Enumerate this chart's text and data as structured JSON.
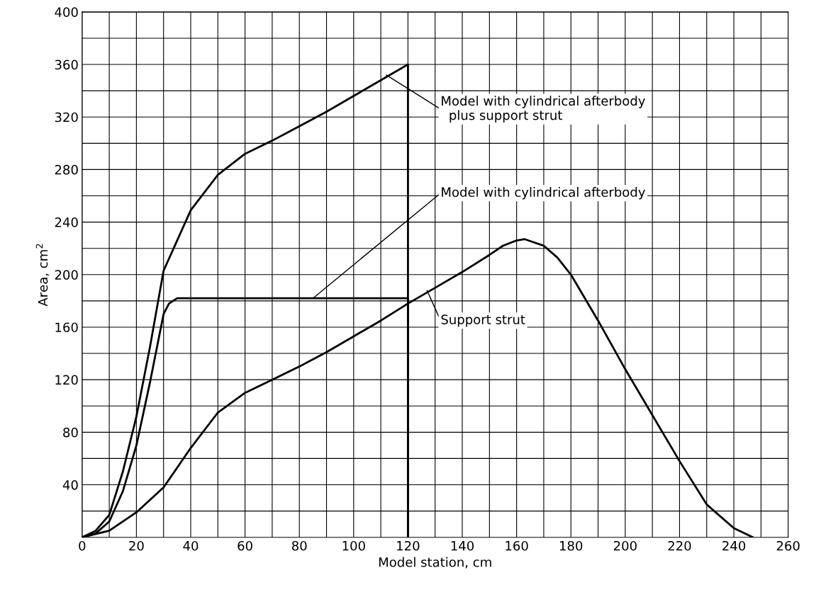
{
  "chart_data": {
    "type": "line",
    "xlabel": "Model station, cm",
    "ylabel": "Area, cm$^{2}$",
    "xlim": [
      0,
      260
    ],
    "ylim": [
      0,
      400
    ],
    "xticks": [
      0,
      {
        "value": 10,
        "label": null
      },
      20,
      {
        "value": 30,
        "label": null
      },
      40,
      {
        "value": 50,
        "label": null
      },
      60,
      {
        "value": 70,
        "label": null
      },
      80,
      {
        "value": 90,
        "label": null
      },
      100,
      {
        "value": 110,
        "label": null
      },
      120,
      {
        "value": 130,
        "label": null
      },
      140,
      {
        "value": 150,
        "label": null
      },
      160,
      {
        "value": 170,
        "label": null
      },
      180,
      {
        "value": 190,
        "label": null
      },
      200,
      {
        "value": 210,
        "label": null
      },
      220,
      {
        "value": 230,
        "label": null
      },
      240,
      {
        "value": 250,
        "label": null
      },
      260
    ],
    "yticks": [
      {
        "value": 20,
        "label": null
      },
      40,
      {
        "value": 60,
        "label": null
      },
      80,
      {
        "value": 100,
        "label": null
      },
      120,
      {
        "value": 140,
        "label": null
      },
      160,
      {
        "value": 180,
        "label": null
      },
      200,
      {
        "value": 220,
        "label": null
      },
      240,
      {
        "value": 260,
        "label": null
      },
      280,
      {
        "value": 300,
        "label": null
      },
      320,
      {
        "value": 340,
        "label": null
      },
      360,
      {
        "value": 380,
        "label": null
      },
      400
    ],
    "grid": true,
    "legend": false,
    "marker": "none",
    "line_style": "solid",
    "series": [
      {
        "color": "#000000",
        "x": [
          0,
          5,
          10,
          15,
          20,
          25,
          30,
          35,
          40,
          50,
          60,
          70,
          80,
          90,
          100,
          110,
          120,
          120
        ],
        "values": [
          0,
          5,
          17,
          50,
          92,
          145,
          203,
          226,
          249,
          276,
          292,
          302,
          313,
          324,
          336,
          348,
          360,
          0
        ]
      },
      {
        "color": "#000000",
        "x": [
          0,
          5,
          10,
          15,
          20,
          25,
          30,
          32,
          35,
          120,
          120
        ],
        "values": [
          0,
          3,
          12,
          35,
          70,
          118,
          170,
          178,
          182,
          182,
          0
        ]
      },
      {
        "color": "#000000",
        "x": [
          0,
          10,
          20,
          30,
          40,
          50,
          60,
          70,
          80,
          90,
          100,
          110,
          120,
          130,
          140,
          150,
          155,
          160,
          163,
          170,
          175,
          180,
          190,
          200,
          210,
          220,
          230,
          240,
          247
        ],
        "values": [
          0,
          5,
          19,
          38,
          68,
          95,
          110,
          120,
          130,
          141,
          153,
          165,
          178,
          190,
          202,
          215,
          222,
          226,
          227,
          222,
          213,
          200,
          165,
          128,
          93,
          58,
          25,
          7,
          0
        ]
      }
    ],
    "annotations": [
      {
        "text": "Model with cylindrical afterbody\n  plus support strut",
        "x": 112,
        "y": 352
      },
      {
        "text": "Model with cylindrical afterbody",
        "x": 85,
        "y": 182
      },
      {
        "text": "Support strut",
        "x": 127,
        "y": 188
      }
    ]
  }
}
